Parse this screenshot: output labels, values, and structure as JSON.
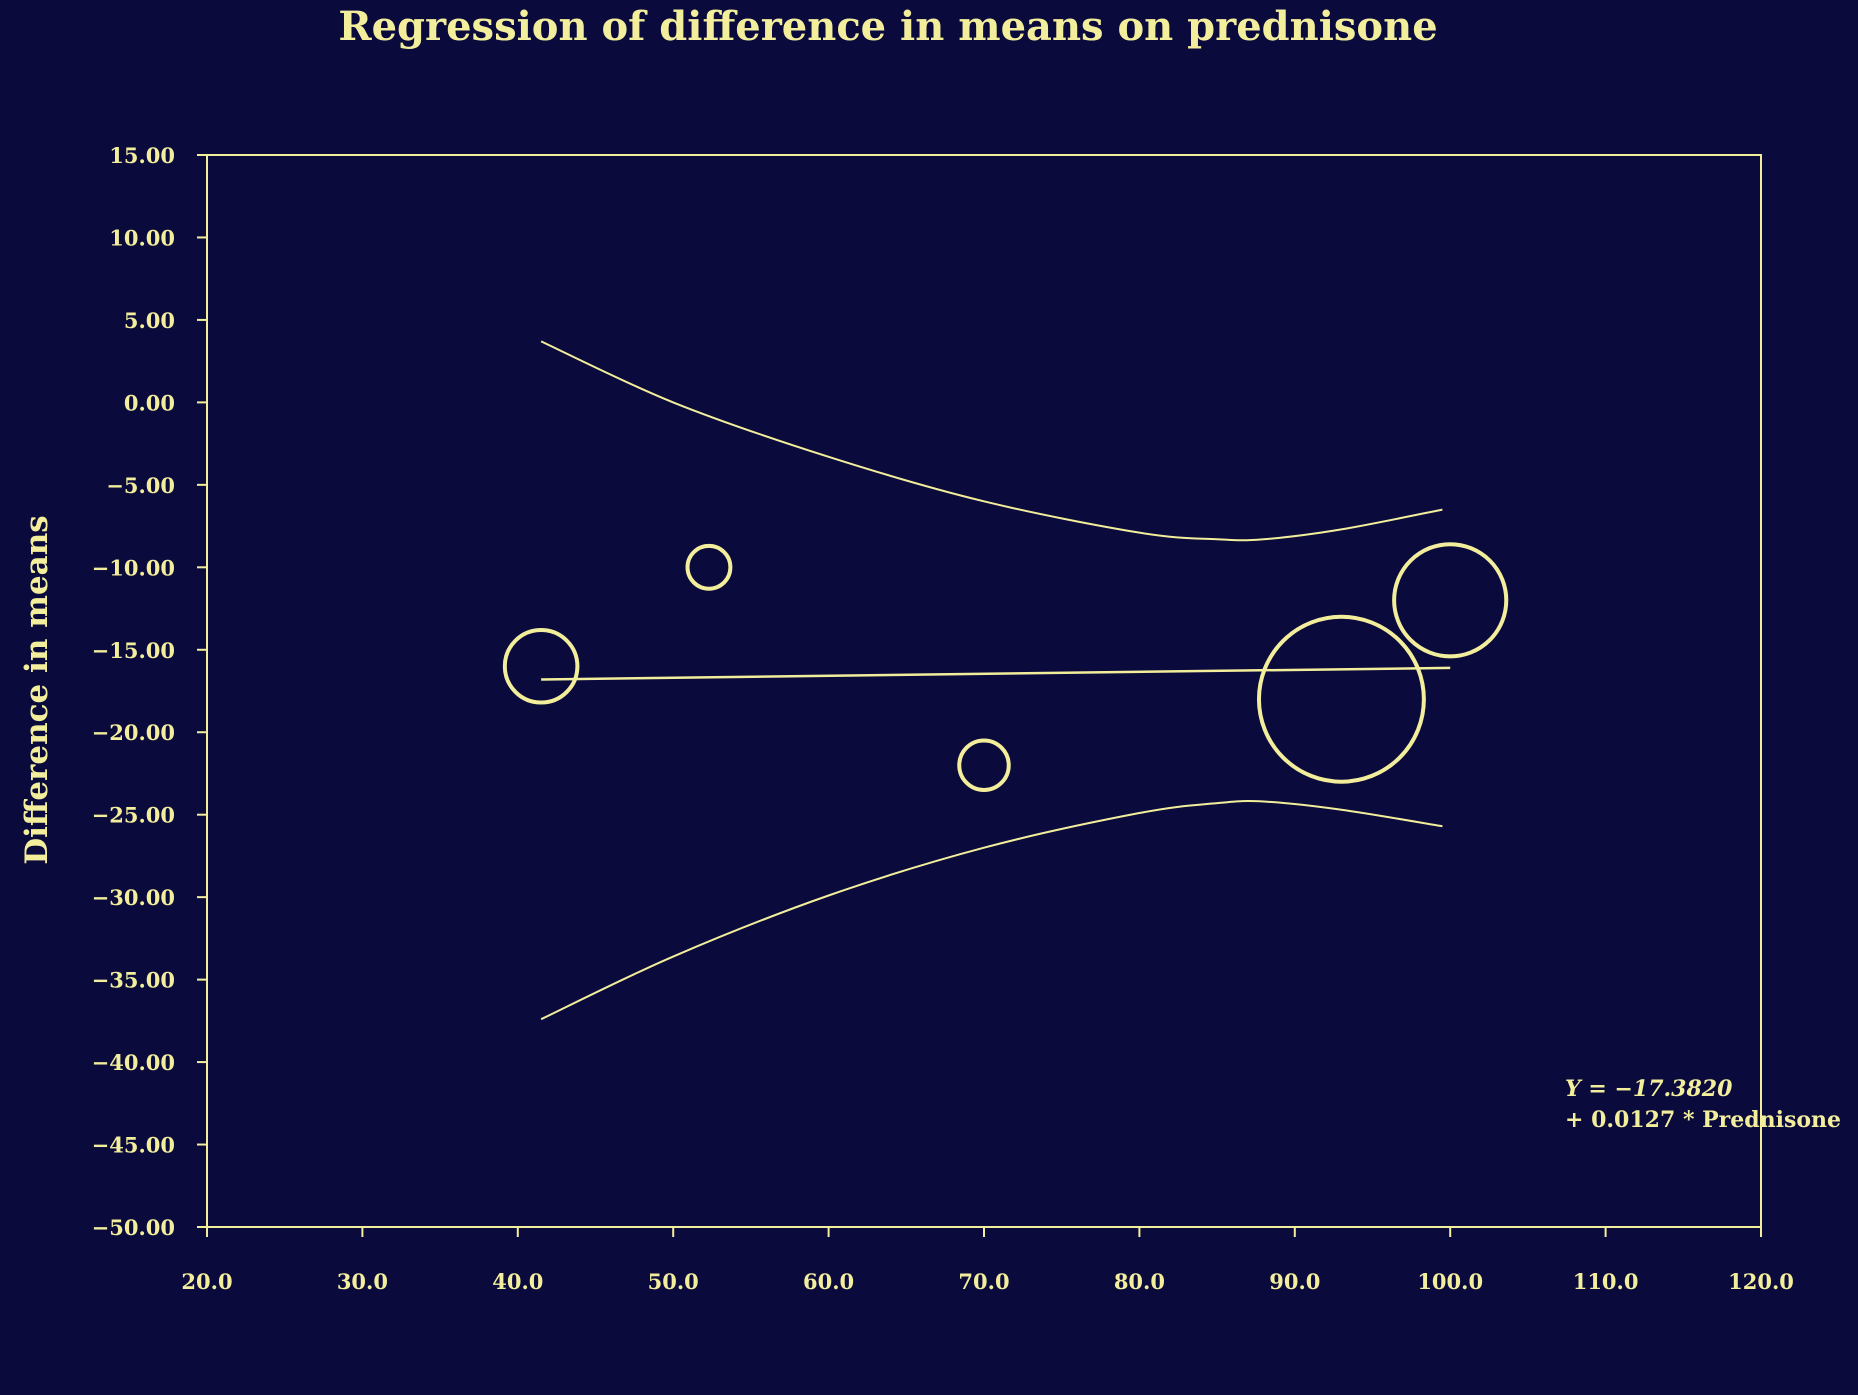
{
  "chart_data": {
    "type": "scatter",
    "title": "Regression of difference in means on prednisone",
    "xlabel": "",
    "ylabel": "Difference in means",
    "xlim": [
      20,
      120
    ],
    "ylim": [
      -50,
      15
    ],
    "grid": false,
    "x_ticks": [
      "20.0",
      "30.0",
      "40.0",
      "50.0",
      "60.0",
      "70.0",
      "80.0",
      "90.0",
      "100.0",
      "110.0",
      "120.0"
    ],
    "y_ticks": [
      "15.00",
      "10.00",
      "5.00",
      "0.00",
      "−5.00",
      "−10.00",
      "−15.00",
      "−20.00",
      "−25.00",
      "−30.00",
      "−35.00",
      "−40.00",
      "−45.00",
      "−50.00"
    ],
    "points": [
      {
        "x": 41.5,
        "y": -16.0,
        "r_rel": 2.2
      },
      {
        "x": 52.3,
        "y": -10.0,
        "r_rel": 1.3
      },
      {
        "x": 70.0,
        "y": -22.0,
        "r_rel": 1.5
      },
      {
        "x": 93.0,
        "y": -18.0,
        "r_rel": 5.0
      },
      {
        "x": 100.0,
        "y": -12.0,
        "r_rel": 3.4
      }
    ],
    "regression_line": {
      "x": [
        41.5,
        100.0
      ],
      "y": [
        -16.8,
        -16.1
      ]
    },
    "upper_band": {
      "x": [
        41.5,
        50,
        60,
        70,
        80,
        85,
        88,
        93,
        99.5
      ],
      "y": [
        3.7,
        0.0,
        -3.3,
        -6.0,
        -7.9,
        -8.3,
        -8.3,
        -7.7,
        -6.5
      ]
    },
    "lower_band": {
      "x": [
        41.5,
        50,
        60,
        70,
        80,
        85,
        88,
        93,
        99.5
      ],
      "y": [
        -37.4,
        -33.6,
        -29.9,
        -27.0,
        -24.9,
        -24.3,
        -24.2,
        -24.7,
        -25.7
      ]
    },
    "annotation": {
      "line1": "Y = −17.3820",
      "line2": "+ 0.0127 * Prednisone"
    },
    "colors": {
      "background": "#0a0a3c",
      "foreground": "#f3ee9c"
    }
  }
}
